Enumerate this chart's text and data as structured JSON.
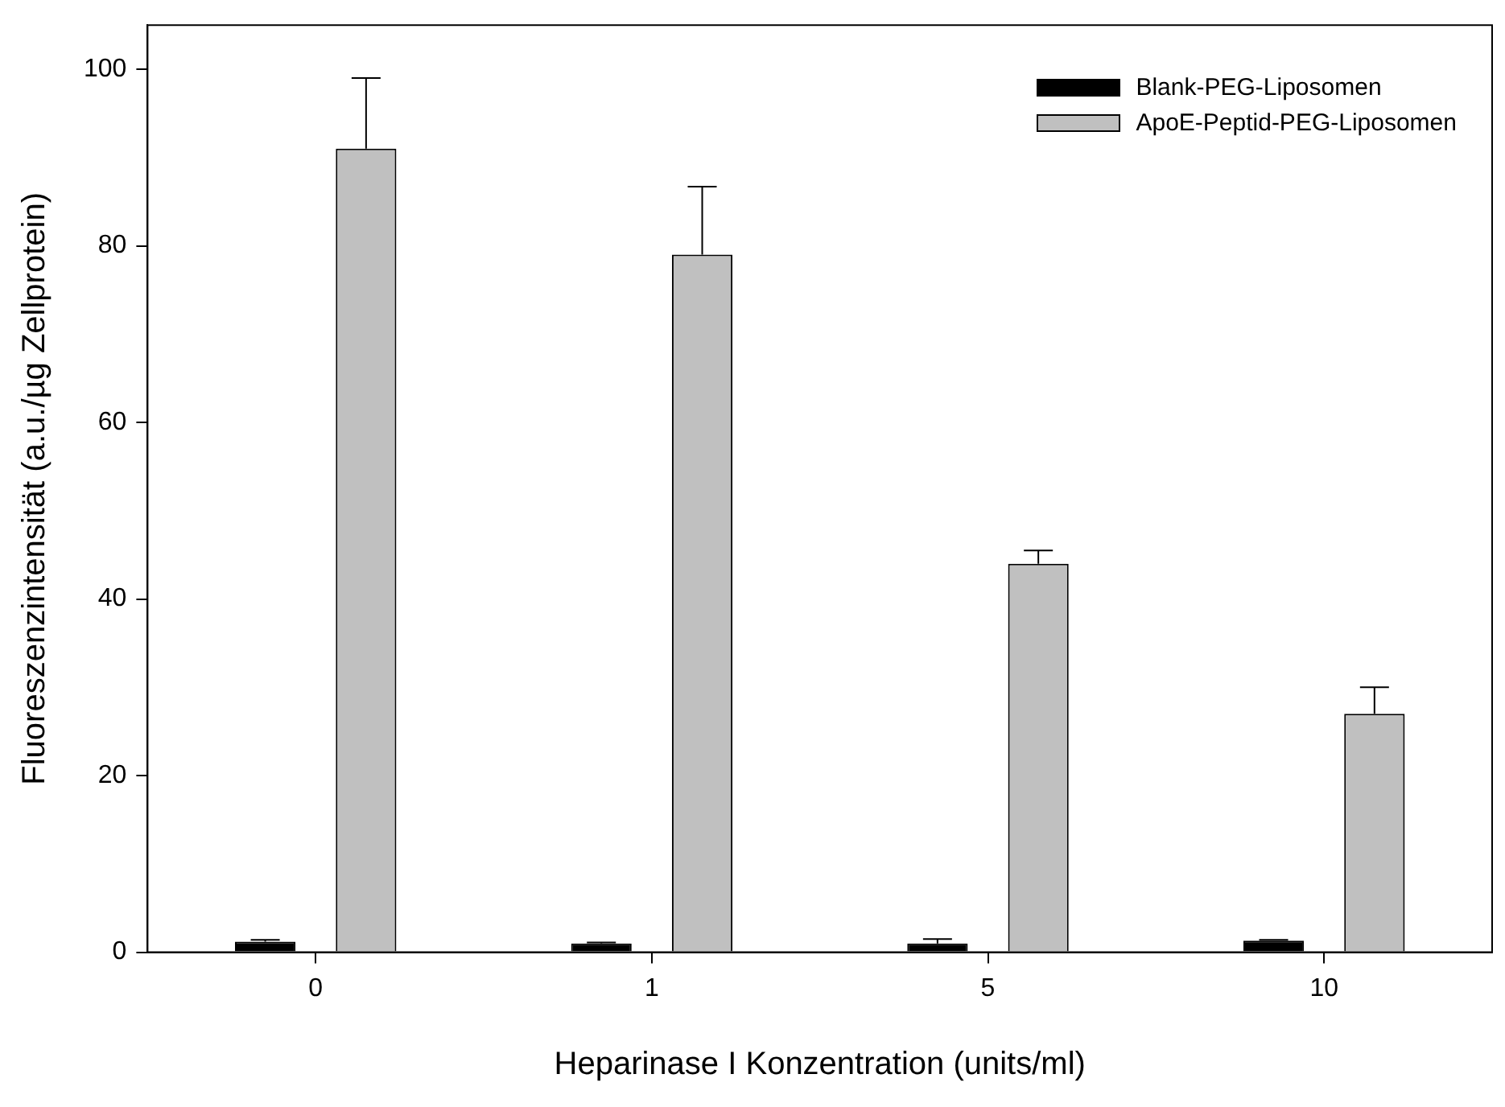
{
  "chart_data": {
    "type": "bar",
    "xlabel": "Heparinase I Konzentration (units/ml)",
    "ylabel": "Fluoreszenzintensität (a.u./µg Zellprotein)",
    "categories": [
      "0",
      "1",
      "5",
      "10"
    ],
    "series": [
      {
        "name": "Blank-PEG-Liposomen",
        "color": "#000000",
        "values": [
          1.2,
          1.0,
          1.0,
          1.3
        ],
        "errors": [
          [
            1.2,
            1.4
          ],
          [
            1.0,
            1.1
          ],
          [
            1.0,
            1.5
          ],
          [
            1.3,
            1.4
          ]
        ]
      },
      {
        "name": "ApoE-Peptid-PEG-Liposomen",
        "color": "#c0c0c0",
        "values": [
          91,
          79,
          44,
          27
        ],
        "errors": [
          [
            91,
            99
          ],
          [
            79,
            86.7
          ],
          [
            44,
            45.5
          ],
          [
            27,
            30
          ]
        ]
      }
    ],
    "ylim": [
      0,
      105
    ],
    "yticks": [
      0,
      20,
      40,
      60,
      80,
      100
    ],
    "grid": false,
    "legend": "top right"
  }
}
